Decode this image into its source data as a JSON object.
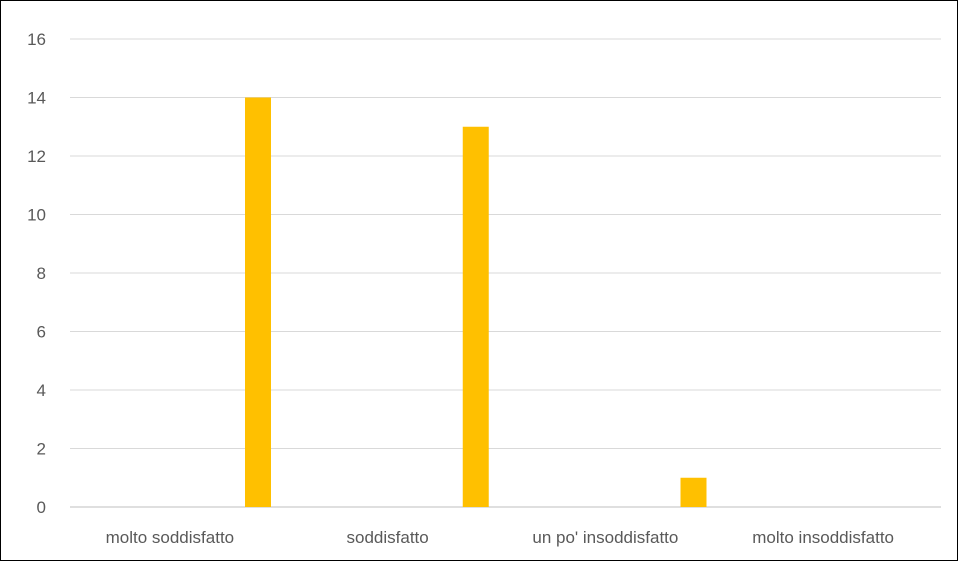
{
  "chart_data": {
    "type": "bar",
    "title": "",
    "xlabel": "",
    "ylabel": "",
    "categories": [
      "molto soddisfatto",
      "soddisfatto",
      "un po' insoddisfatto",
      "molto insoddisfatto"
    ],
    "series": [
      {
        "values": [
          14,
          13,
          1,
          0
        ]
      }
    ],
    "ylim": [
      0,
      16
    ],
    "yticks": [
      0,
      2,
      4,
      6,
      8,
      10,
      12,
      14,
      16
    ],
    "grid": "horizontal",
    "legend": "none",
    "colors": {
      "bar": "#FFC000",
      "gridline": "#D9D9D9",
      "axis_line": "#BFBFBF",
      "tick_text": "#595959"
    }
  }
}
